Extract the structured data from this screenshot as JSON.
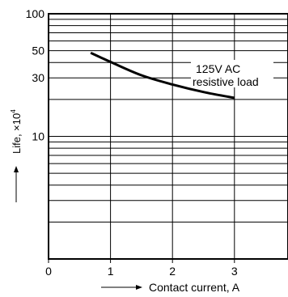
{
  "chart_data": {
    "type": "line",
    "yscale": "log",
    "xlim": [
      0,
      3.85
    ],
    "ylim": [
      1,
      100
    ],
    "x_ticks": [
      {
        "value": 0,
        "label": "0"
      },
      {
        "value": 1,
        "label": "1"
      },
      {
        "value": 2,
        "label": "2"
      },
      {
        "value": 3,
        "label": "3"
      }
    ],
    "y_ticks": [
      {
        "value": 10,
        "label": "10"
      },
      {
        "value": 30,
        "label": "30"
      },
      {
        "value": 50,
        "label": "50"
      },
      {
        "value": 100,
        "label": "100"
      }
    ],
    "y_grid_values": [
      2,
      3,
      4,
      5,
      6,
      7,
      8,
      9,
      10,
      20,
      30,
      40,
      50,
      60,
      70,
      80,
      90,
      100
    ],
    "x_grid_values": [
      1,
      2,
      3
    ],
    "series": [
      {
        "x": [
          0.68,
          1.0,
          1.5,
          2.0,
          2.5,
          3.0
        ],
        "y": [
          48,
          40.5,
          31.5,
          26.5,
          23.0,
          20.6
        ],
        "annotation": [
          "125V AC",
          "resistive load"
        ]
      }
    ],
    "xlabel": "Contact current, A",
    "ylabel": "Life, ×10",
    "ylabel_superscript": "4",
    "arrow": "long-right-arrow"
  }
}
